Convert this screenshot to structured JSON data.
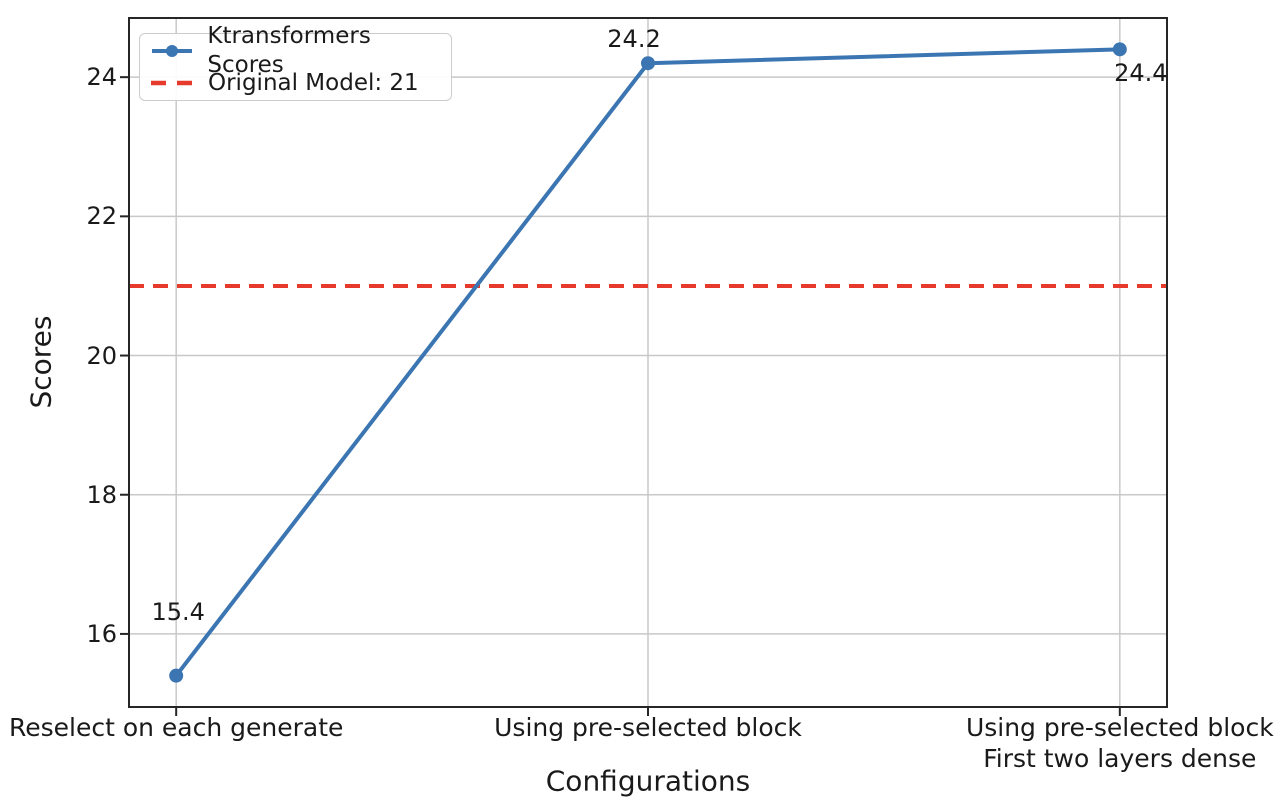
{
  "chart_data": {
    "type": "line",
    "title": "",
    "xlabel": "Configurations",
    "ylabel": "Scores",
    "categories": [
      "Reselect on each generate",
      "Using pre-selected block",
      "Using pre-selected block\nFirst two layers dense"
    ],
    "series": [
      {
        "name": "Ktransformers Scores",
        "values": [
          15.4,
          24.2,
          24.4
        ],
        "color": "#3b76b2",
        "marker": "circle",
        "line_style": "solid"
      }
    ],
    "reference_line": {
      "name": "Original Model: 21",
      "value": 21,
      "color": "#e63a2c",
      "line_style": "dashed"
    },
    "point_labels": [
      "15.4",
      "24.2",
      "24.4"
    ],
    "yticks": [
      16,
      18,
      20,
      22,
      24
    ],
    "ylim": [
      14.95,
      24.85
    ],
    "xlim": [
      -0.1,
      2.1
    ],
    "grid": true,
    "grid_color": "#c8c8c8",
    "spine_color": "#262626",
    "legend_position": "upper-left"
  }
}
